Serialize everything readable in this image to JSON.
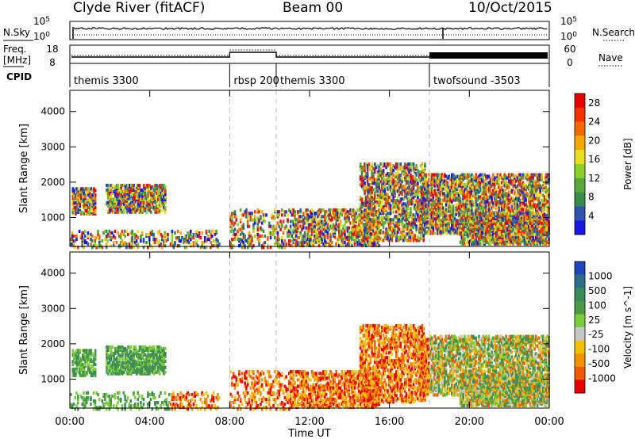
{
  "header": {
    "station": "Clyde River (fitACF)",
    "beam": "Beam 00",
    "date": "10/Oct/2015"
  },
  "panel_labels": {
    "nsky": "N.Sky",
    "freq": "Freq.",
    "freq_unit": "[MHz]",
    "cpid": "CPID",
    "nsearch": "N.Search",
    "nave": "Nave"
  },
  "panel_ticks": {
    "nsky_left": [
      "10^5",
      "10^0"
    ],
    "nsky_right": [
      "10^5",
      "10^0"
    ],
    "freq_left": [
      "18",
      "8"
    ],
    "freq_right": [
      "60",
      "0"
    ]
  },
  "cpid_segments": [
    {
      "label": "themis 3300",
      "start_h": 0.0,
      "end_h": 8.0
    },
    {
      "label": "rbsp 200",
      "start_h": 8.0,
      "end_h": 10.33
    },
    {
      "label": "themis 3300",
      "start_h": 10.33,
      "end_h": 18.0
    },
    {
      "label": "twofsound -3503",
      "start_h": 18.0,
      "end_h": 24.0
    }
  ],
  "chart_data": [
    {
      "type": "heatmap",
      "title": "Power [dB]",
      "ylabel": "Slant Range [km]",
      "xlabel": "Time UT",
      "ylim": [
        180,
        4600
      ],
      "yticks": [
        1000,
        2000,
        3000,
        4000
      ],
      "x_ticks": [
        "00:00",
        "04:00",
        "08:00",
        "12:00",
        "16:00",
        "20:00",
        "00:00"
      ],
      "colorbar": {
        "label": "Power [dB]",
        "ticks": [
          "4",
          "8",
          "12",
          "16",
          "20",
          "24",
          "28"
        ],
        "colors": [
          "#1818e6",
          "#2f54b0",
          "#3a8a4a",
          "#5aa83c",
          "#8fd12c",
          "#e6e021",
          "#f5a800",
          "#f06a00",
          "#f23000",
          "#e60000"
        ]
      }
    },
    {
      "type": "heatmap",
      "title": "Velocity [m s^-1]",
      "ylabel": "Slant Range [km]",
      "xlabel": "Time UT",
      "ylim": [
        180,
        4600
      ],
      "yticks": [
        1000,
        2000,
        3000,
        4000
      ],
      "x_ticks": [
        "00:00",
        "04:00",
        "08:00",
        "12:00",
        "16:00",
        "20:00",
        "00:00"
      ],
      "colorbar": {
        "label": "Velocity [m s^-1]",
        "ticks": [
          "1000",
          "500",
          "100",
          "25",
          "-25",
          "-100",
          "-500",
          "-1000"
        ],
        "colors": [
          "#2244bb",
          "#2f6e8a",
          "#3b8a5a",
          "#4c9a48",
          "#7ccd3c",
          "#c8c8c8",
          "#f2c200",
          "#f29200",
          "#f05a00",
          "#e60000"
        ]
      }
    }
  ],
  "time_axis": {
    "label": "Time UT"
  },
  "colors": {
    "frame": "#000000",
    "mode_divider": "#bdbdbd",
    "bad_data_grey": "#c8c8c8"
  }
}
